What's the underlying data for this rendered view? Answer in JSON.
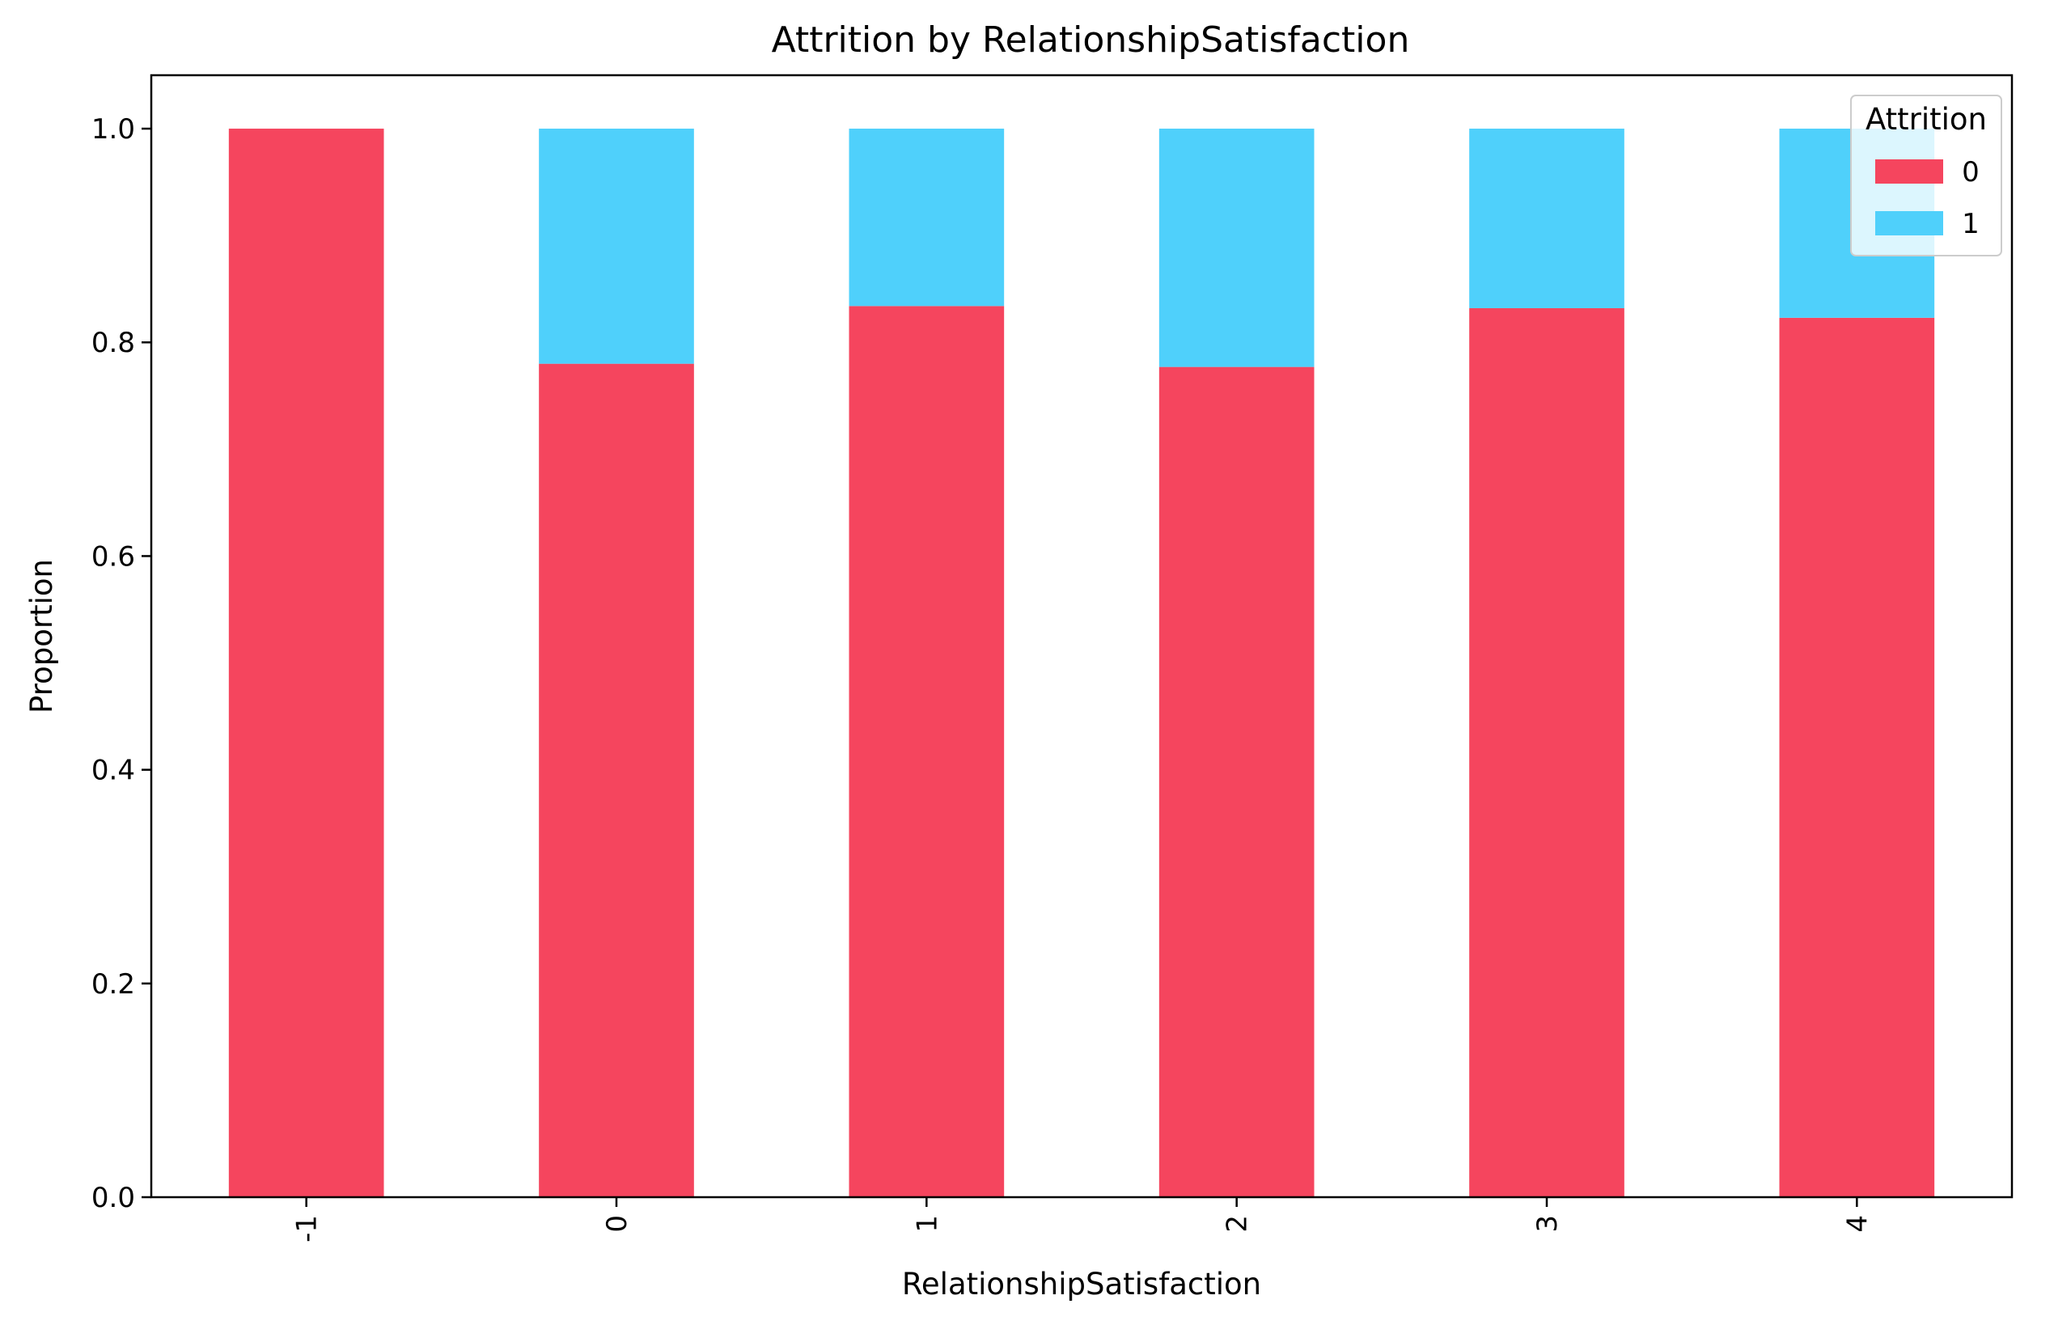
{
  "chart_data": {
    "type": "bar",
    "stacked": true,
    "title": "Attrition by RelationshipSatisfaction",
    "xlabel": "RelationshipSatisfaction",
    "ylabel": "Proportion",
    "categories": [
      "-1",
      "0",
      "1",
      "2",
      "3",
      "4"
    ],
    "series": [
      {
        "name": "0",
        "color": "#f5455e",
        "values": [
          1.0,
          0.78,
          0.834,
          0.777,
          0.832,
          0.823
        ]
      },
      {
        "name": "1",
        "color": "#4fd0fb",
        "values": [
          0.0,
          0.22,
          0.166,
          0.223,
          0.168,
          0.177
        ]
      }
    ],
    "ylim": [
      0,
      1.05
    ],
    "yticks": [
      0.0,
      0.2,
      0.4,
      0.6,
      0.8,
      1.0
    ],
    "ytick_labels": [
      "0.0",
      "0.2",
      "0.4",
      "0.6",
      "0.8",
      "1.0"
    ],
    "xtick_rotation": 90,
    "legend": {
      "title": "Attrition",
      "placement": "top-right"
    },
    "grid": false
  }
}
